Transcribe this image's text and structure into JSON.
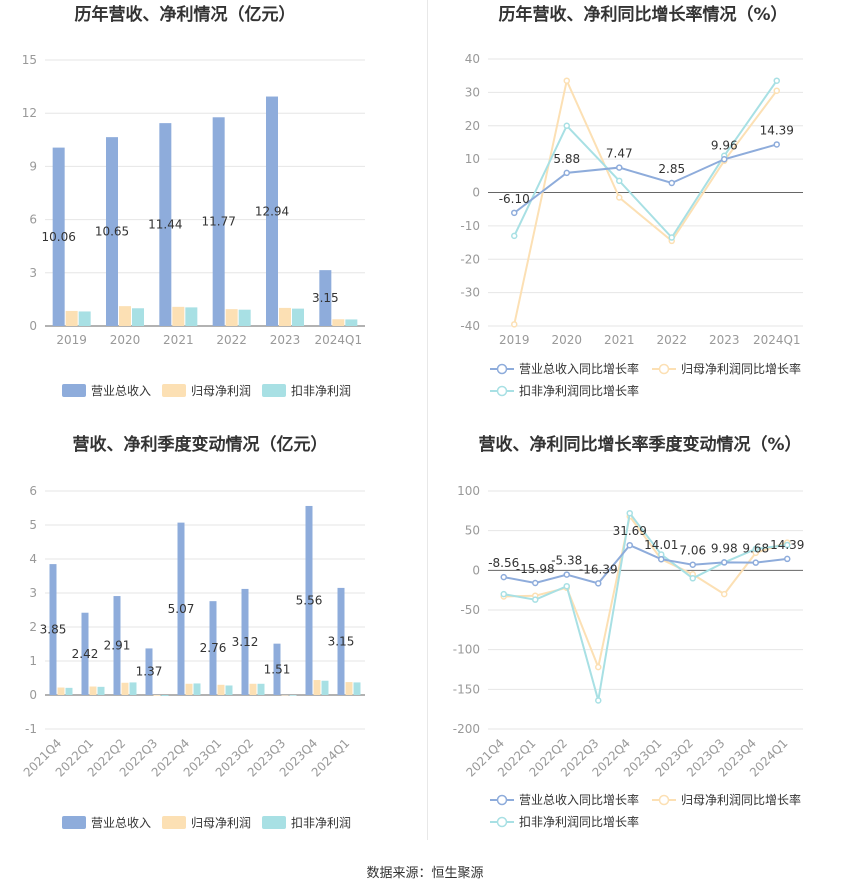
{
  "colors": {
    "revenue": "#8eacdb",
    "parent": "#fce0b4",
    "deducted": "#a8e0e4"
  },
  "source": "数据来源：恒生聚源",
  "chart_data": [
    {
      "type": "bar",
      "title": "历年营收、净利情况（亿元）",
      "categories": [
        "2019",
        "2020",
        "2021",
        "2022",
        "2023",
        "2024Q1"
      ],
      "ylim": [
        0,
        15
      ],
      "yticks": [
        0,
        3,
        6,
        9,
        12,
        15
      ],
      "series": [
        {
          "name": "营业总收入",
          "values": [
            10.06,
            10.65,
            11.44,
            11.77,
            12.94,
            3.15
          ]
        },
        {
          "name": "归母净利润",
          "values": [
            0.85,
            1.12,
            1.08,
            0.95,
            1.02,
            0.38
          ]
        },
        {
          "name": "扣非净利润",
          "values": [
            0.82,
            1.0,
            1.05,
            0.92,
            0.98,
            0.37
          ]
        }
      ],
      "data_labels": [
        "10.06",
        "10.65",
        "11.44",
        "11.77",
        "12.94",
        "3.15"
      ],
      "legend": "bottom"
    },
    {
      "type": "line",
      "title": "历年营收、净利同比增长率情况（%）",
      "categories": [
        "2019",
        "2020",
        "2021",
        "2022",
        "2023",
        "2024Q1"
      ],
      "ylim": [
        -40,
        40
      ],
      "yticks": [
        -40,
        -30,
        -20,
        -10,
        0,
        10,
        20,
        30,
        40
      ],
      "series": [
        {
          "name": "营业总收入同比增长率",
          "values": [
            -6.1,
            5.88,
            7.47,
            2.85,
            9.96,
            14.39
          ]
        },
        {
          "name": "归母净利润同比增长率",
          "values": [
            -39.5,
            33.5,
            -1.5,
            -14.5,
            9.5,
            30.5
          ]
        },
        {
          "name": "扣非净利润同比增长率",
          "values": [
            -13,
            20,
            3.5,
            -13.5,
            11,
            33.5
          ]
        }
      ],
      "data_labels": [
        "-6.10",
        "5.88",
        "7.47",
        "2.85",
        "9.96",
        "14.39"
      ],
      "legend": "bottom"
    },
    {
      "type": "bar",
      "title": "营收、净利季度变动情况（亿元）",
      "categories": [
        "2021Q4",
        "2022Q1",
        "2022Q2",
        "2022Q3",
        "2022Q4",
        "2023Q1",
        "2023Q2",
        "2023Q3",
        "2023Q4",
        "2024Q1"
      ],
      "ylim": [
        -1,
        6
      ],
      "yticks": [
        -1,
        0,
        1,
        2,
        3,
        4,
        5,
        6
      ],
      "series": [
        {
          "name": "营业总收入",
          "values": [
            3.85,
            2.42,
            2.91,
            1.37,
            5.07,
            2.76,
            3.12,
            1.51,
            5.56,
            3.15
          ]
        },
        {
          "name": "归母净利润",
          "values": [
            0.22,
            0.25,
            0.36,
            -0.02,
            0.33,
            0.3,
            0.33,
            -0.01,
            0.44,
            0.38
          ]
        },
        {
          "name": "扣非净利润",
          "values": [
            0.21,
            0.24,
            0.37,
            -0.03,
            0.34,
            0.28,
            0.33,
            -0.02,
            0.42,
            0.37
          ]
        }
      ],
      "data_labels": [
        "3.85",
        "2.42",
        "2.91",
        "1.37",
        "5.07",
        "2.76",
        "3.12",
        "1.51",
        "5.56",
        "3.15"
      ],
      "legend": "bottom"
    },
    {
      "type": "line",
      "title": "营收、净利同比增长率季度变动情况（%）",
      "categories": [
        "2021Q4",
        "2022Q1",
        "2022Q2",
        "2022Q3",
        "2022Q4",
        "2023Q1",
        "2023Q2",
        "2023Q3",
        "2023Q4",
        "2024Q1"
      ],
      "ylim": [
        -200,
        100
      ],
      "yticks": [
        -200,
        -150,
        -100,
        -50,
        0,
        50,
        100
      ],
      "series": [
        {
          "name": "营业总收入同比增长率",
          "values": [
            -8.56,
            -15.98,
            -5.38,
            -16.39,
            31.69,
            14.01,
            7.06,
            9.98,
            9.68,
            14.39
          ]
        },
        {
          "name": "归母净利润同比增长率",
          "values": [
            -33,
            -32,
            -22,
            -122,
            68,
            14,
            -5,
            -30,
            22,
            35
          ]
        },
        {
          "name": "扣非净利润同比增长率",
          "values": [
            -30,
            -37,
            -20,
            -164,
            72,
            20,
            -10,
            10,
            27,
            32
          ]
        }
      ],
      "data_labels": [
        "-8.56",
        "-15.98",
        "-5.38",
        "-16.39",
        "31.69",
        "14.01",
        "7.06",
        "9.98",
        "9.68",
        "14.39"
      ],
      "legend": "bottom"
    }
  ]
}
